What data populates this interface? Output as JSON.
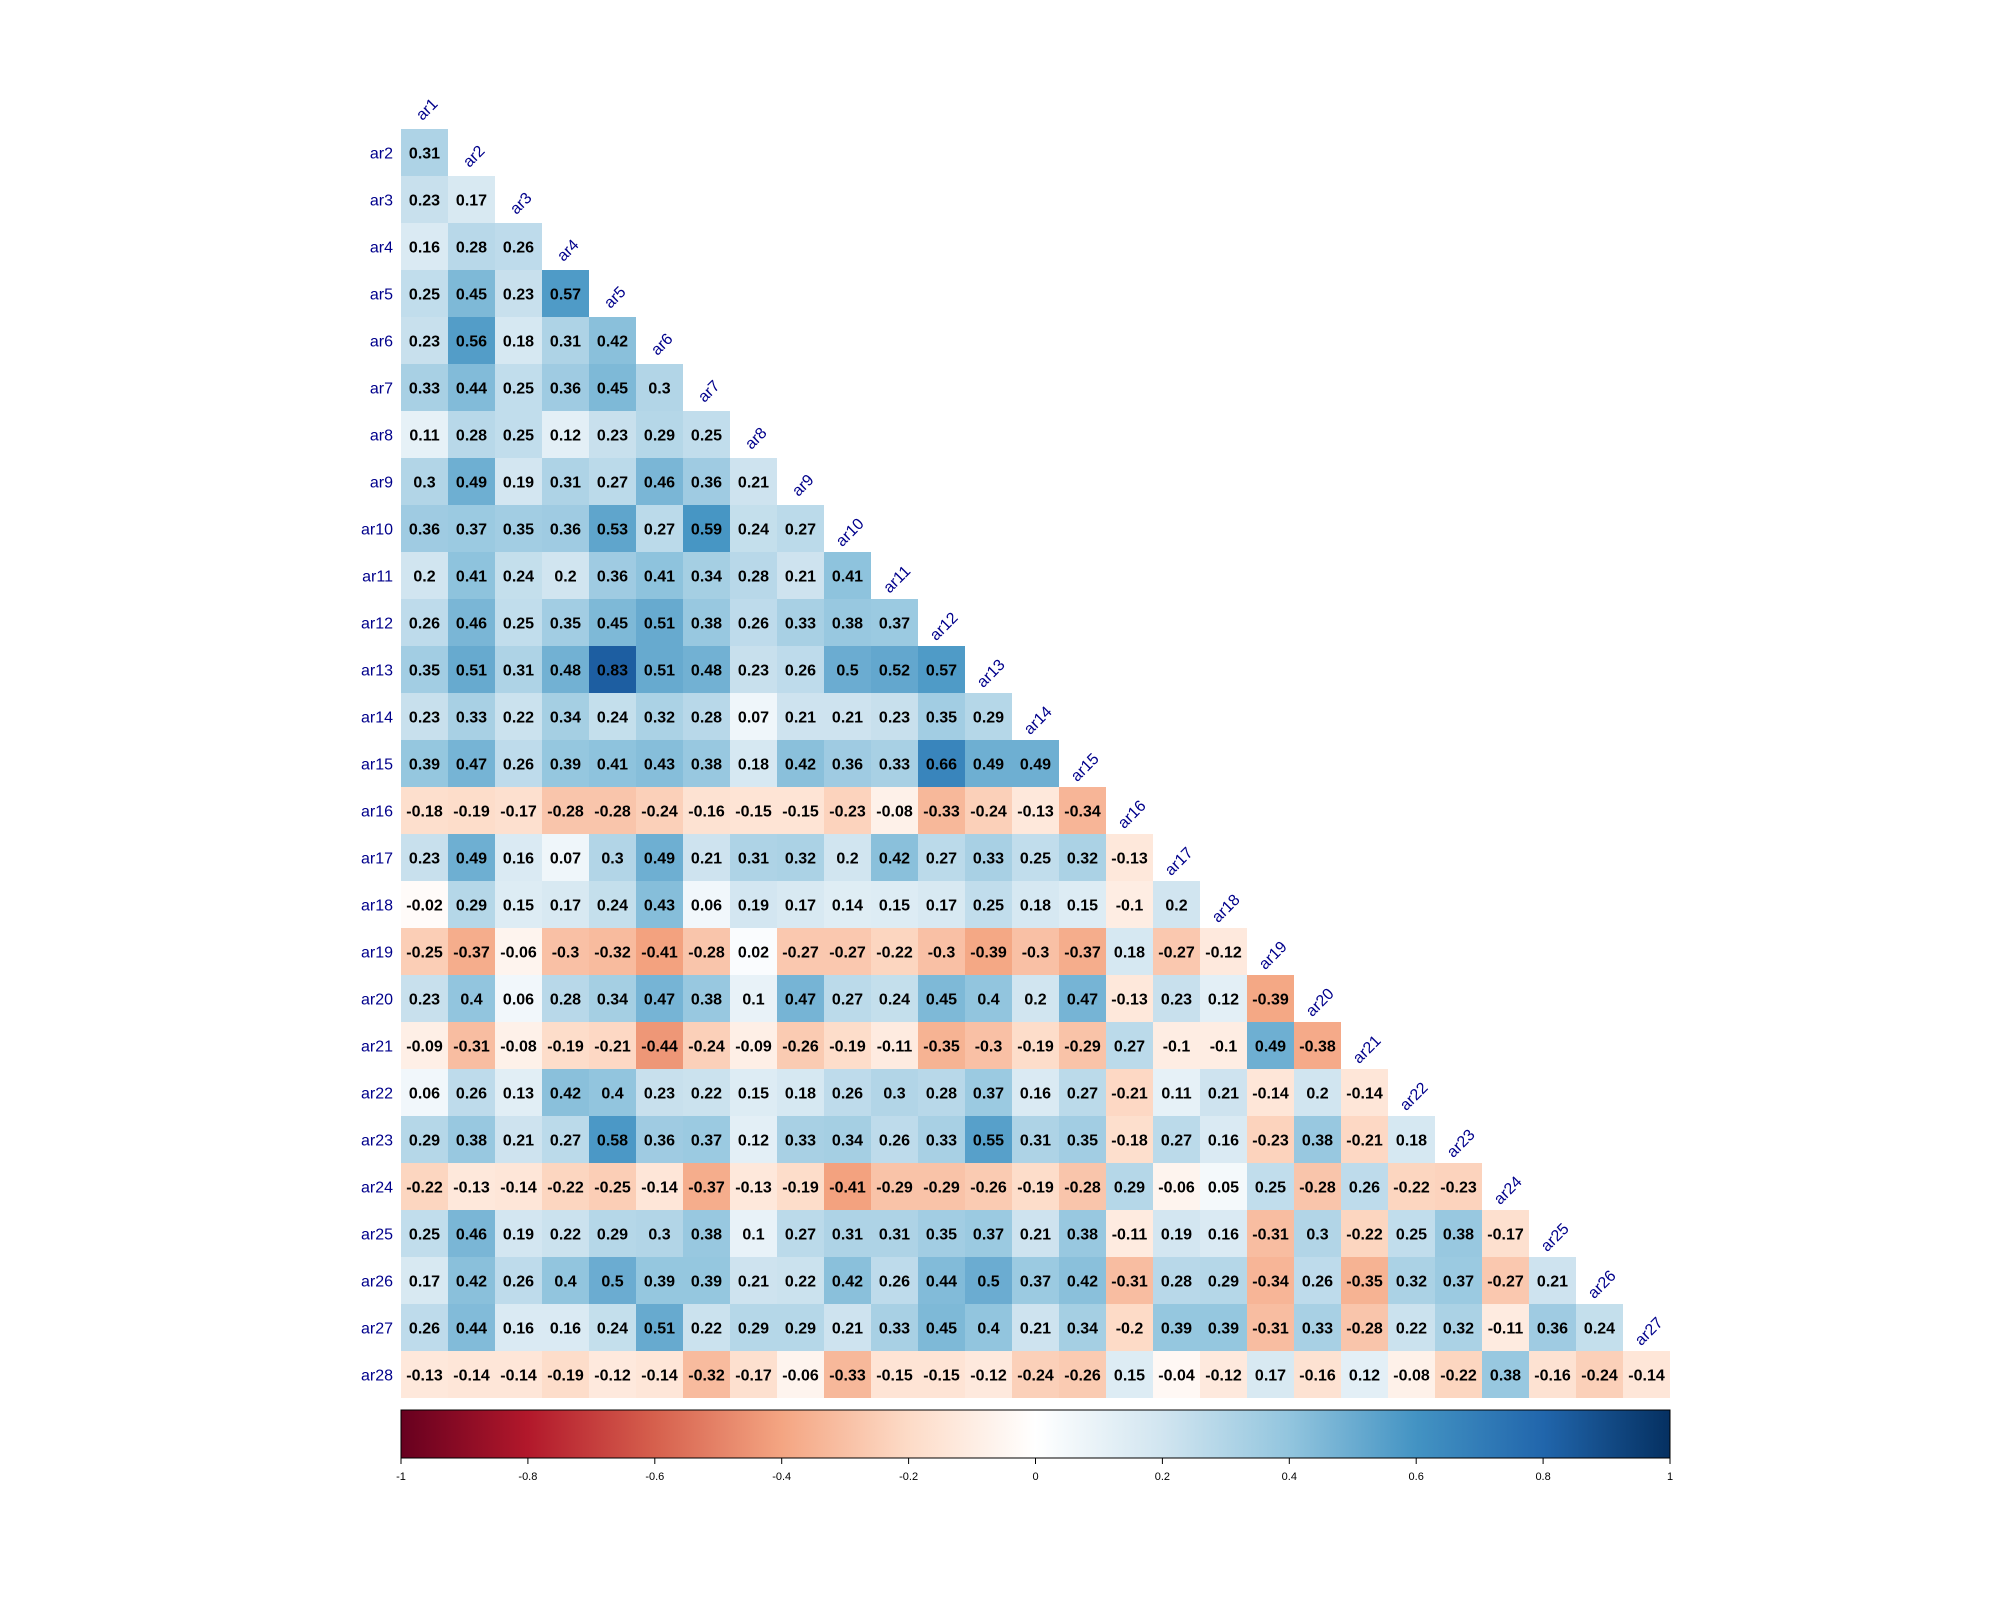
{
  "chart_data": {
    "type": "heatmap",
    "title": "",
    "variables": [
      "ar1",
      "ar2",
      "ar3",
      "ar4",
      "ar5",
      "ar6",
      "ar7",
      "ar8",
      "ar9",
      "ar10",
      "ar11",
      "ar12",
      "ar13",
      "ar14",
      "ar15",
      "ar16",
      "ar17",
      "ar18",
      "ar19",
      "ar20",
      "ar21",
      "ar22",
      "ar23",
      "ar24",
      "ar25",
      "ar26",
      "ar27",
      "ar28"
    ],
    "layout": "lower-triangle",
    "diagonal_shown": false,
    "value_range": [
      -1,
      1
    ],
    "colorscale": [
      "#67001f",
      "#b2182b",
      "#d6604d",
      "#f4a582",
      "#fddbc7",
      "#ffffff",
      "#d1e5f0",
      "#92c5de",
      "#4393c3",
      "#2166ac",
      "#053061"
    ],
    "colorbar": {
      "placement": "bottom",
      "ticks": [
        "-1",
        "-0.8",
        "-0.6",
        "-0.4",
        "-0.2",
        "0",
        "0.2",
        "0.4",
        "0.6",
        "0.8",
        "1"
      ]
    },
    "rows": [
      {
        "label": "ar2",
        "values": [
          "0.31"
        ]
      },
      {
        "label": "ar3",
        "values": [
          "0.23",
          "0.17"
        ]
      },
      {
        "label": "ar4",
        "values": [
          "0.16",
          "0.28",
          "0.26"
        ]
      },
      {
        "label": "ar5",
        "values": [
          "0.25",
          "0.45",
          "0.23",
          "0.57"
        ]
      },
      {
        "label": "ar6",
        "values": [
          "0.23",
          "0.56",
          "0.18",
          "0.31",
          "0.42"
        ]
      },
      {
        "label": "ar7",
        "values": [
          "0.33",
          "0.44",
          "0.25",
          "0.36",
          "0.45",
          "0.3"
        ]
      },
      {
        "label": "ar8",
        "values": [
          "0.11",
          "0.28",
          "0.25",
          "0.12",
          "0.23",
          "0.29",
          "0.25"
        ]
      },
      {
        "label": "ar9",
        "values": [
          "0.3",
          "0.49",
          "0.19",
          "0.31",
          "0.27",
          "0.46",
          "0.36",
          "0.21"
        ]
      },
      {
        "label": "ar10",
        "values": [
          "0.36",
          "0.37",
          "0.35",
          "0.36",
          "0.53",
          "0.27",
          "0.59",
          "0.24",
          "0.27"
        ]
      },
      {
        "label": "ar11",
        "values": [
          "0.2",
          "0.41",
          "0.24",
          "0.2",
          "0.36",
          "0.41",
          "0.34",
          "0.28",
          "0.21",
          "0.41"
        ]
      },
      {
        "label": "ar12",
        "values": [
          "0.26",
          "0.46",
          "0.25",
          "0.35",
          "0.45",
          "0.51",
          "0.38",
          "0.26",
          "0.33",
          "0.38",
          "0.37"
        ]
      },
      {
        "label": "ar13",
        "values": [
          "0.35",
          "0.51",
          "0.31",
          "0.48",
          "0.83",
          "0.51",
          "0.48",
          "0.23",
          "0.26",
          "0.5",
          "0.52",
          "0.57"
        ]
      },
      {
        "label": "ar14",
        "values": [
          "0.23",
          "0.33",
          "0.22",
          "0.34",
          "0.24",
          "0.32",
          "0.28",
          "0.07",
          "0.21",
          "0.21",
          "0.23",
          "0.35",
          "0.29"
        ]
      },
      {
        "label": "ar15",
        "values": [
          "0.39",
          "0.47",
          "0.26",
          "0.39",
          "0.41",
          "0.43",
          "0.38",
          "0.18",
          "0.42",
          "0.36",
          "0.33",
          "0.66",
          "0.49",
          "0.49"
        ]
      },
      {
        "label": "ar16",
        "values": [
          "-0.18",
          "-0.19",
          "-0.17",
          "-0.28",
          "-0.28",
          "-0.24",
          "-0.16",
          "-0.15",
          "-0.15",
          "-0.23",
          "-0.08",
          "-0.33",
          "-0.24",
          "-0.13",
          "-0.34"
        ]
      },
      {
        "label": "ar17",
        "values": [
          "0.23",
          "0.49",
          "0.16",
          "0.07",
          "0.3",
          "0.49",
          "0.21",
          "0.31",
          "0.32",
          "0.2",
          "0.42",
          "0.27",
          "0.33",
          "0.25",
          "0.32",
          "-0.13"
        ]
      },
      {
        "label": "ar18",
        "values": [
          "-0.02",
          "0.29",
          "0.15",
          "0.17",
          "0.24",
          "0.43",
          "0.06",
          "0.19",
          "0.17",
          "0.14",
          "0.15",
          "0.17",
          "0.25",
          "0.18",
          "0.15",
          "-0.1",
          "0.2"
        ]
      },
      {
        "label": "ar19",
        "values": [
          "-0.25",
          "-0.37",
          "-0.06",
          "-0.3",
          "-0.32",
          "-0.41",
          "-0.28",
          "0.02",
          "-0.27",
          "-0.27",
          "-0.22",
          "-0.3",
          "-0.39",
          "-0.3",
          "-0.37",
          "0.18",
          "-0.27",
          "-0.12"
        ]
      },
      {
        "label": "ar20",
        "values": [
          "0.23",
          "0.4",
          "0.06",
          "0.28",
          "0.34",
          "0.47",
          "0.38",
          "0.1",
          "0.47",
          "0.27",
          "0.24",
          "0.45",
          "0.4",
          "0.2",
          "0.47",
          "-0.13",
          "0.23",
          "0.12",
          "-0.39"
        ]
      },
      {
        "label": "ar21",
        "values": [
          "-0.09",
          "-0.31",
          "-0.08",
          "-0.19",
          "-0.21",
          "-0.44",
          "-0.24",
          "-0.09",
          "-0.26",
          "-0.19",
          "-0.11",
          "-0.35",
          "-0.3",
          "-0.19",
          "-0.29",
          "0.27",
          "-0.1",
          "-0.1",
          "0.49",
          "-0.38"
        ]
      },
      {
        "label": "ar22",
        "values": [
          "0.06",
          "0.26",
          "0.13",
          "0.42",
          "0.4",
          "0.23",
          "0.22",
          "0.15",
          "0.18",
          "0.26",
          "0.3",
          "0.28",
          "0.37",
          "0.16",
          "0.27",
          "-0.21",
          "0.11",
          "0.21",
          "-0.14",
          "0.2",
          "-0.14"
        ]
      },
      {
        "label": "ar23",
        "values": [
          "0.29",
          "0.38",
          "0.21",
          "0.27",
          "0.58",
          "0.36",
          "0.37",
          "0.12",
          "0.33",
          "0.34",
          "0.26",
          "0.33",
          "0.55",
          "0.31",
          "0.35",
          "-0.18",
          "0.27",
          "0.16",
          "-0.23",
          "0.38",
          "-0.21",
          "0.18"
        ]
      },
      {
        "label": "ar24",
        "values": [
          "-0.22",
          "-0.13",
          "-0.14",
          "-0.22",
          "-0.25",
          "-0.14",
          "-0.37",
          "-0.13",
          "-0.19",
          "-0.41",
          "-0.29",
          "-0.29",
          "-0.26",
          "-0.19",
          "-0.28",
          "0.29",
          "-0.06",
          "0.05",
          "0.25",
          "-0.28",
          "0.26",
          "-0.22",
          "-0.23"
        ]
      },
      {
        "label": "ar25",
        "values": [
          "0.25",
          "0.46",
          "0.19",
          "0.22",
          "0.29",
          "0.3",
          "0.38",
          "0.1",
          "0.27",
          "0.31",
          "0.31",
          "0.35",
          "0.37",
          "0.21",
          "0.38",
          "-0.11",
          "0.19",
          "0.16",
          "-0.31",
          "0.3",
          "-0.22",
          "0.25",
          "0.38",
          "-0.17"
        ]
      },
      {
        "label": "ar26",
        "values": [
          "0.17",
          "0.42",
          "0.26",
          "0.4",
          "0.5",
          "0.39",
          "0.39",
          "0.21",
          "0.22",
          "0.42",
          "0.26",
          "0.44",
          "0.5",
          "0.37",
          "0.42",
          "-0.31",
          "0.28",
          "0.29",
          "-0.34",
          "0.26",
          "-0.35",
          "0.32",
          "0.37",
          "-0.27",
          "0.21"
        ]
      },
      {
        "label": "ar27",
        "values": [
          "0.26",
          "0.44",
          "0.16",
          "0.16",
          "0.24",
          "0.51",
          "0.22",
          "0.29",
          "0.29",
          "0.21",
          "0.33",
          "0.45",
          "0.4",
          "0.21",
          "0.34",
          "-0.2",
          "0.39",
          "0.39",
          "-0.31",
          "0.33",
          "-0.28",
          "0.22",
          "0.32",
          "-0.11",
          "0.36",
          "0.24"
        ]
      },
      {
        "label": "ar28",
        "values": [
          "-0.13",
          "-0.14",
          "-0.14",
          "-0.19",
          "-0.12",
          "-0.14",
          "-0.32",
          "-0.17",
          "-0.06",
          "-0.33",
          "-0.15",
          "-0.15",
          "-0.12",
          "-0.24",
          "-0.26",
          "0.15",
          "-0.04",
          "-0.12",
          "0.17",
          "-0.16",
          "0.12",
          "-0.08",
          "-0.22",
          "0.38",
          "-0.16",
          "-0.24",
          "-0.14"
        ]
      }
    ]
  }
}
